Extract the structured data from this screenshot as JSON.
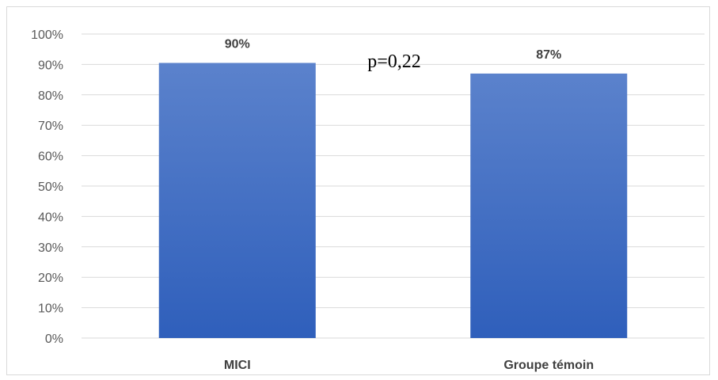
{
  "chart_data": {
    "type": "bar",
    "categories": [
      "MICI",
      "Groupe témoin"
    ],
    "values": [
      90.5,
      87
    ],
    "data_labels": [
      "90%",
      "87%"
    ],
    "ylim": [
      0,
      100
    ],
    "yticks": [
      0,
      10,
      20,
      30,
      40,
      50,
      60,
      70,
      80,
      90,
      100
    ],
    "ytick_labels": [
      "0%",
      "10%",
      "20%",
      "30%",
      "40%",
      "50%",
      "60%",
      "70%",
      "80%",
      "90%",
      "100%"
    ],
    "grid": true,
    "legend": "none",
    "bar_color_top": "#5b82cc",
    "bar_color_bottom": "#2f5fbb",
    "annotation": "p=0,22",
    "title": "",
    "xlabel": "",
    "ylabel": ""
  }
}
